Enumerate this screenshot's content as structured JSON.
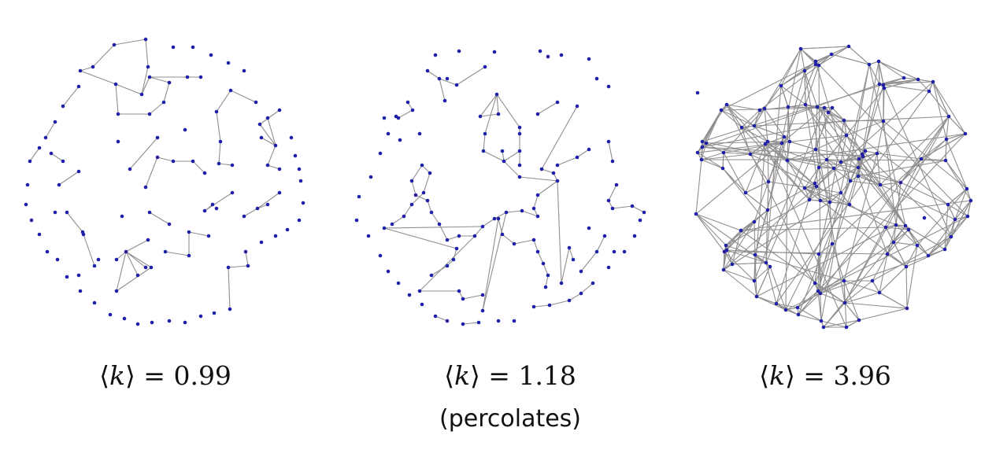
{
  "panels": [
    {
      "symbol": "k",
      "value": "0.99",
      "note": ""
    },
    {
      "symbol": "k",
      "value": "1.18",
      "note": "(percolates)"
    },
    {
      "symbol": "k",
      "value": "3.96",
      "note": ""
    }
  ],
  "colors": {
    "node": "#1f1fa8",
    "edge": "#8f8f8f"
  }
}
